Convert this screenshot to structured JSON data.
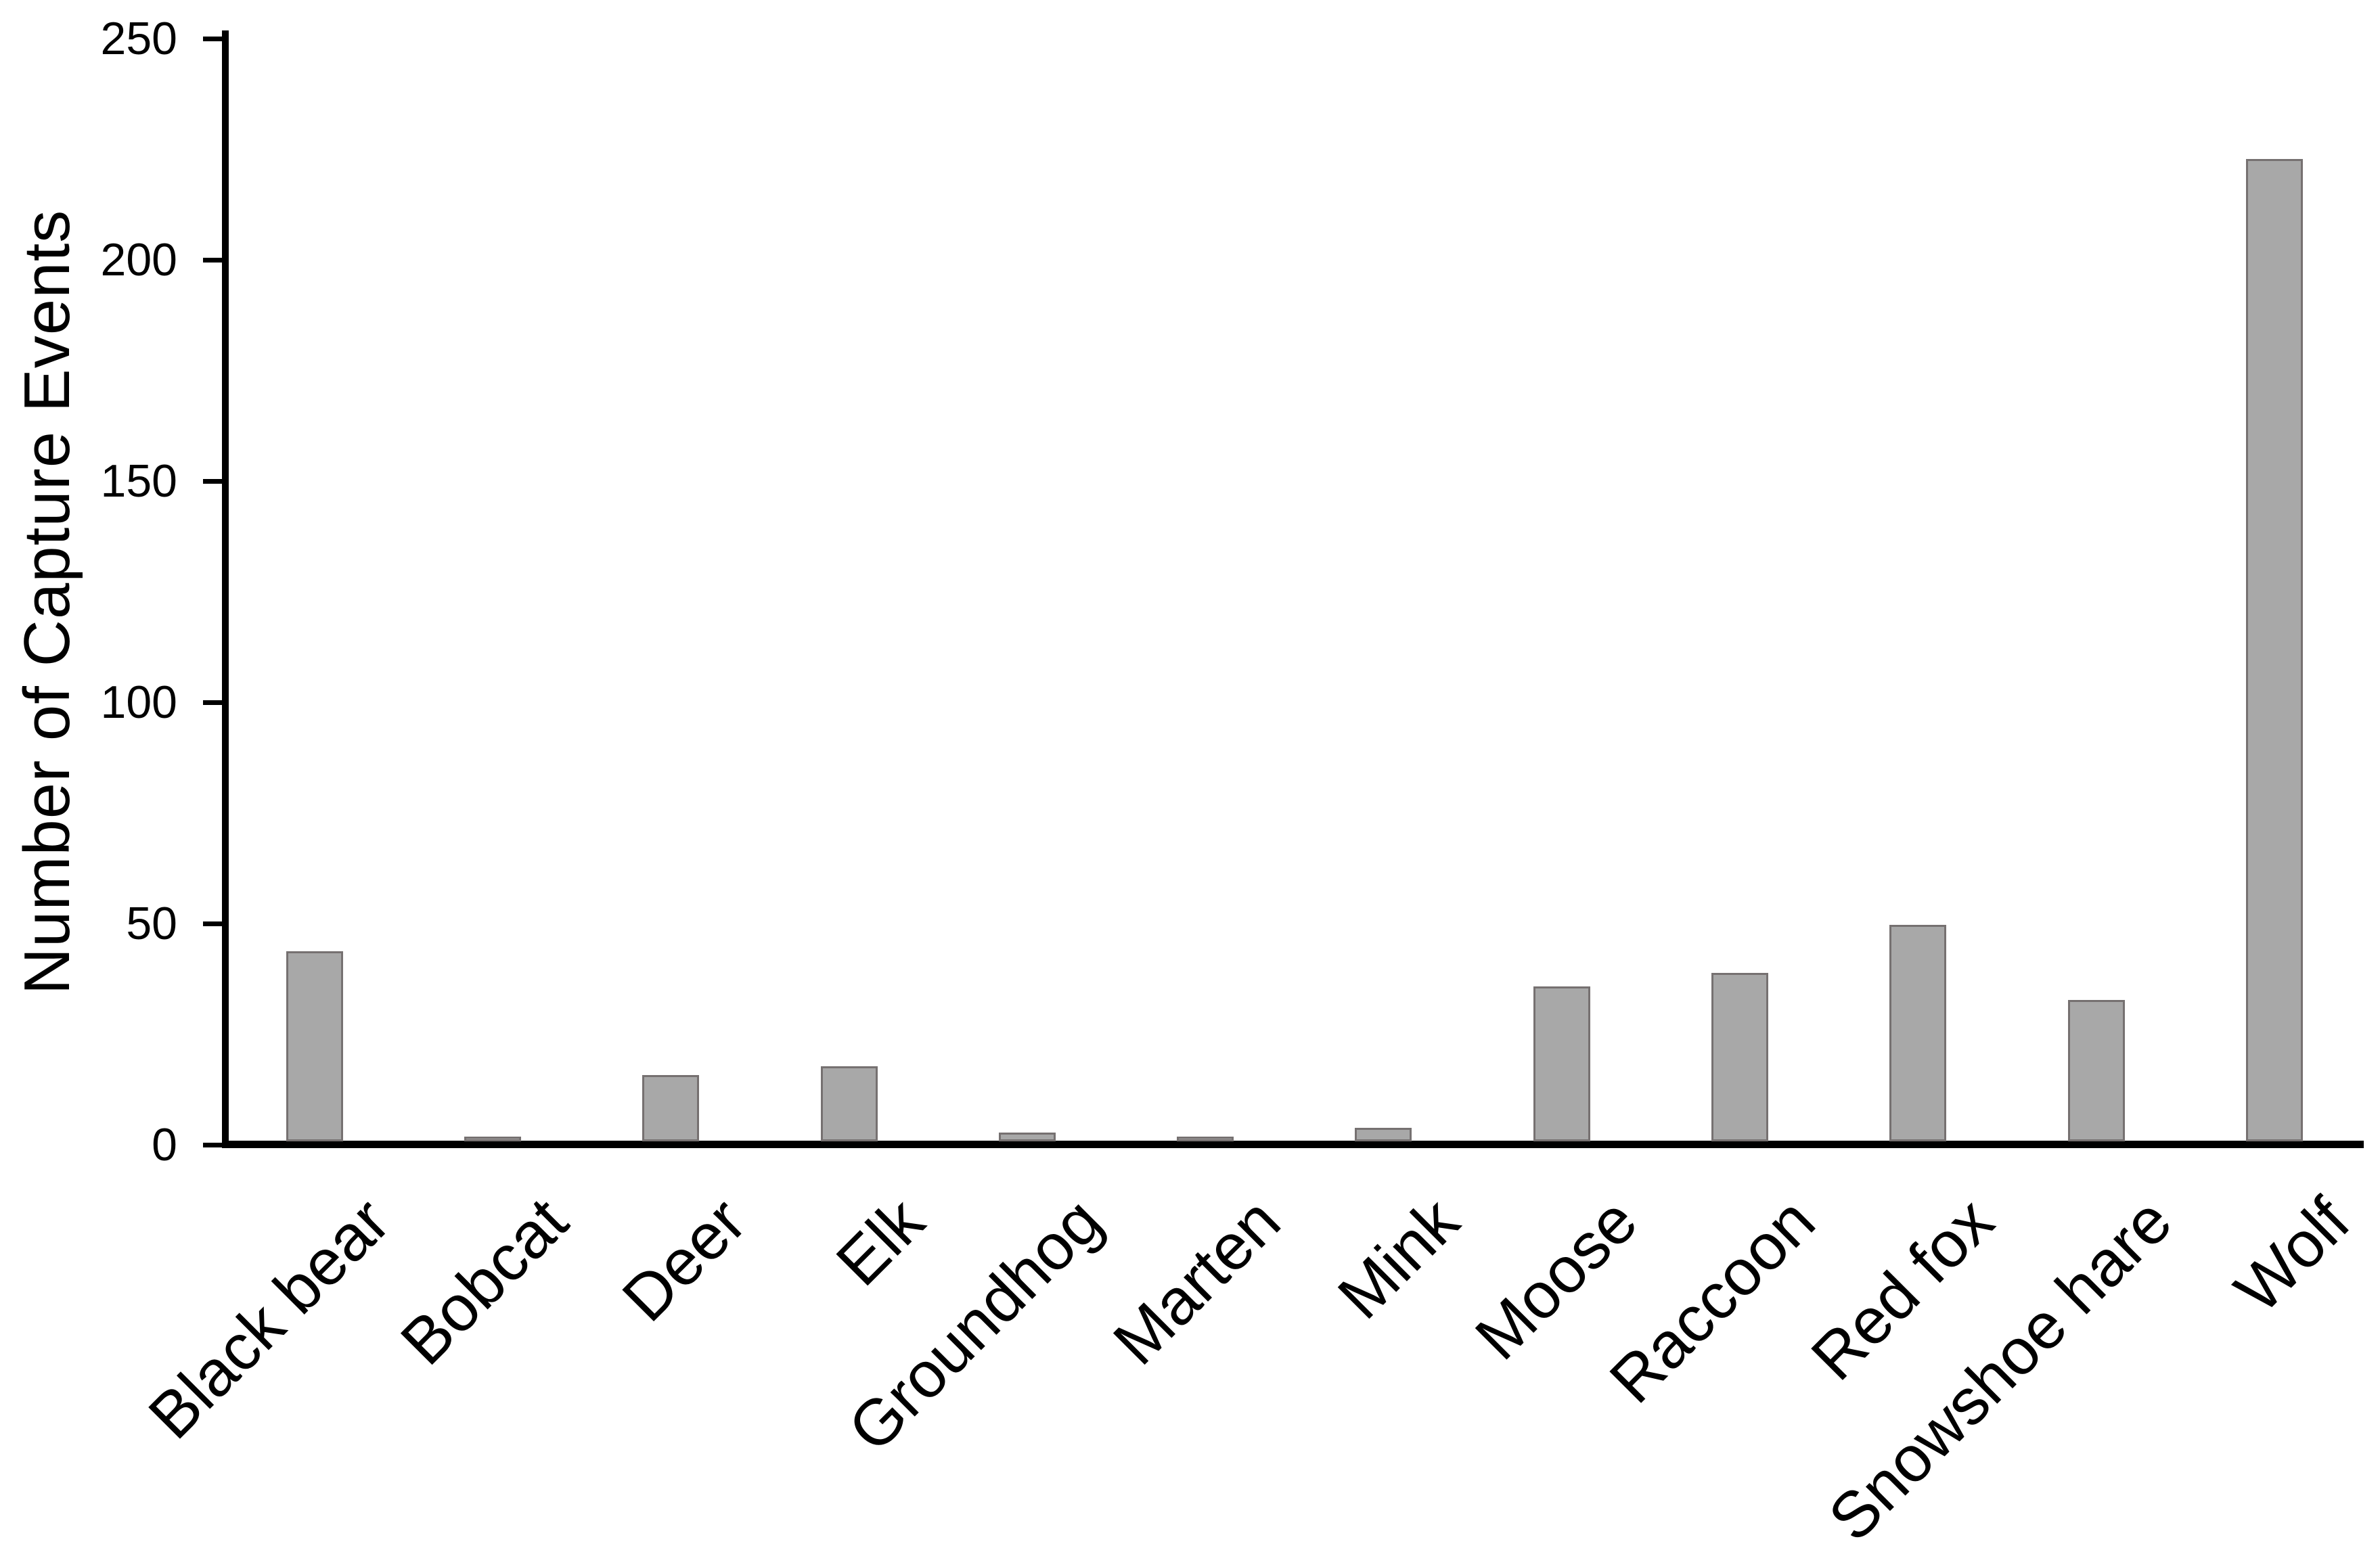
{
  "chart_data": {
    "type": "bar",
    "title": "",
    "categories": [
      "Black bear",
      "Bobcat",
      "Deer",
      "Elk",
      "Groundhog",
      "Marten",
      "Mink",
      "Moose",
      "Raccoon",
      "Red fox",
      "Snowshoe hare",
      "Wolf"
    ],
    "values": [
      43,
      1,
      15,
      17,
      2,
      1,
      3,
      35,
      38,
      49,
      32,
      222
    ],
    "xlabel": "",
    "ylabel": "Number of Capture Events",
    "ylim": [
      0,
      250
    ],
    "yticks": [
      0,
      50,
      100,
      150,
      200,
      250
    ],
    "grid": false,
    "legend": "none",
    "bar_fill_color": "#A8A8A8",
    "bar_border_color": "#767171",
    "axis_color": "#000000",
    "text_color": "#000000"
  }
}
